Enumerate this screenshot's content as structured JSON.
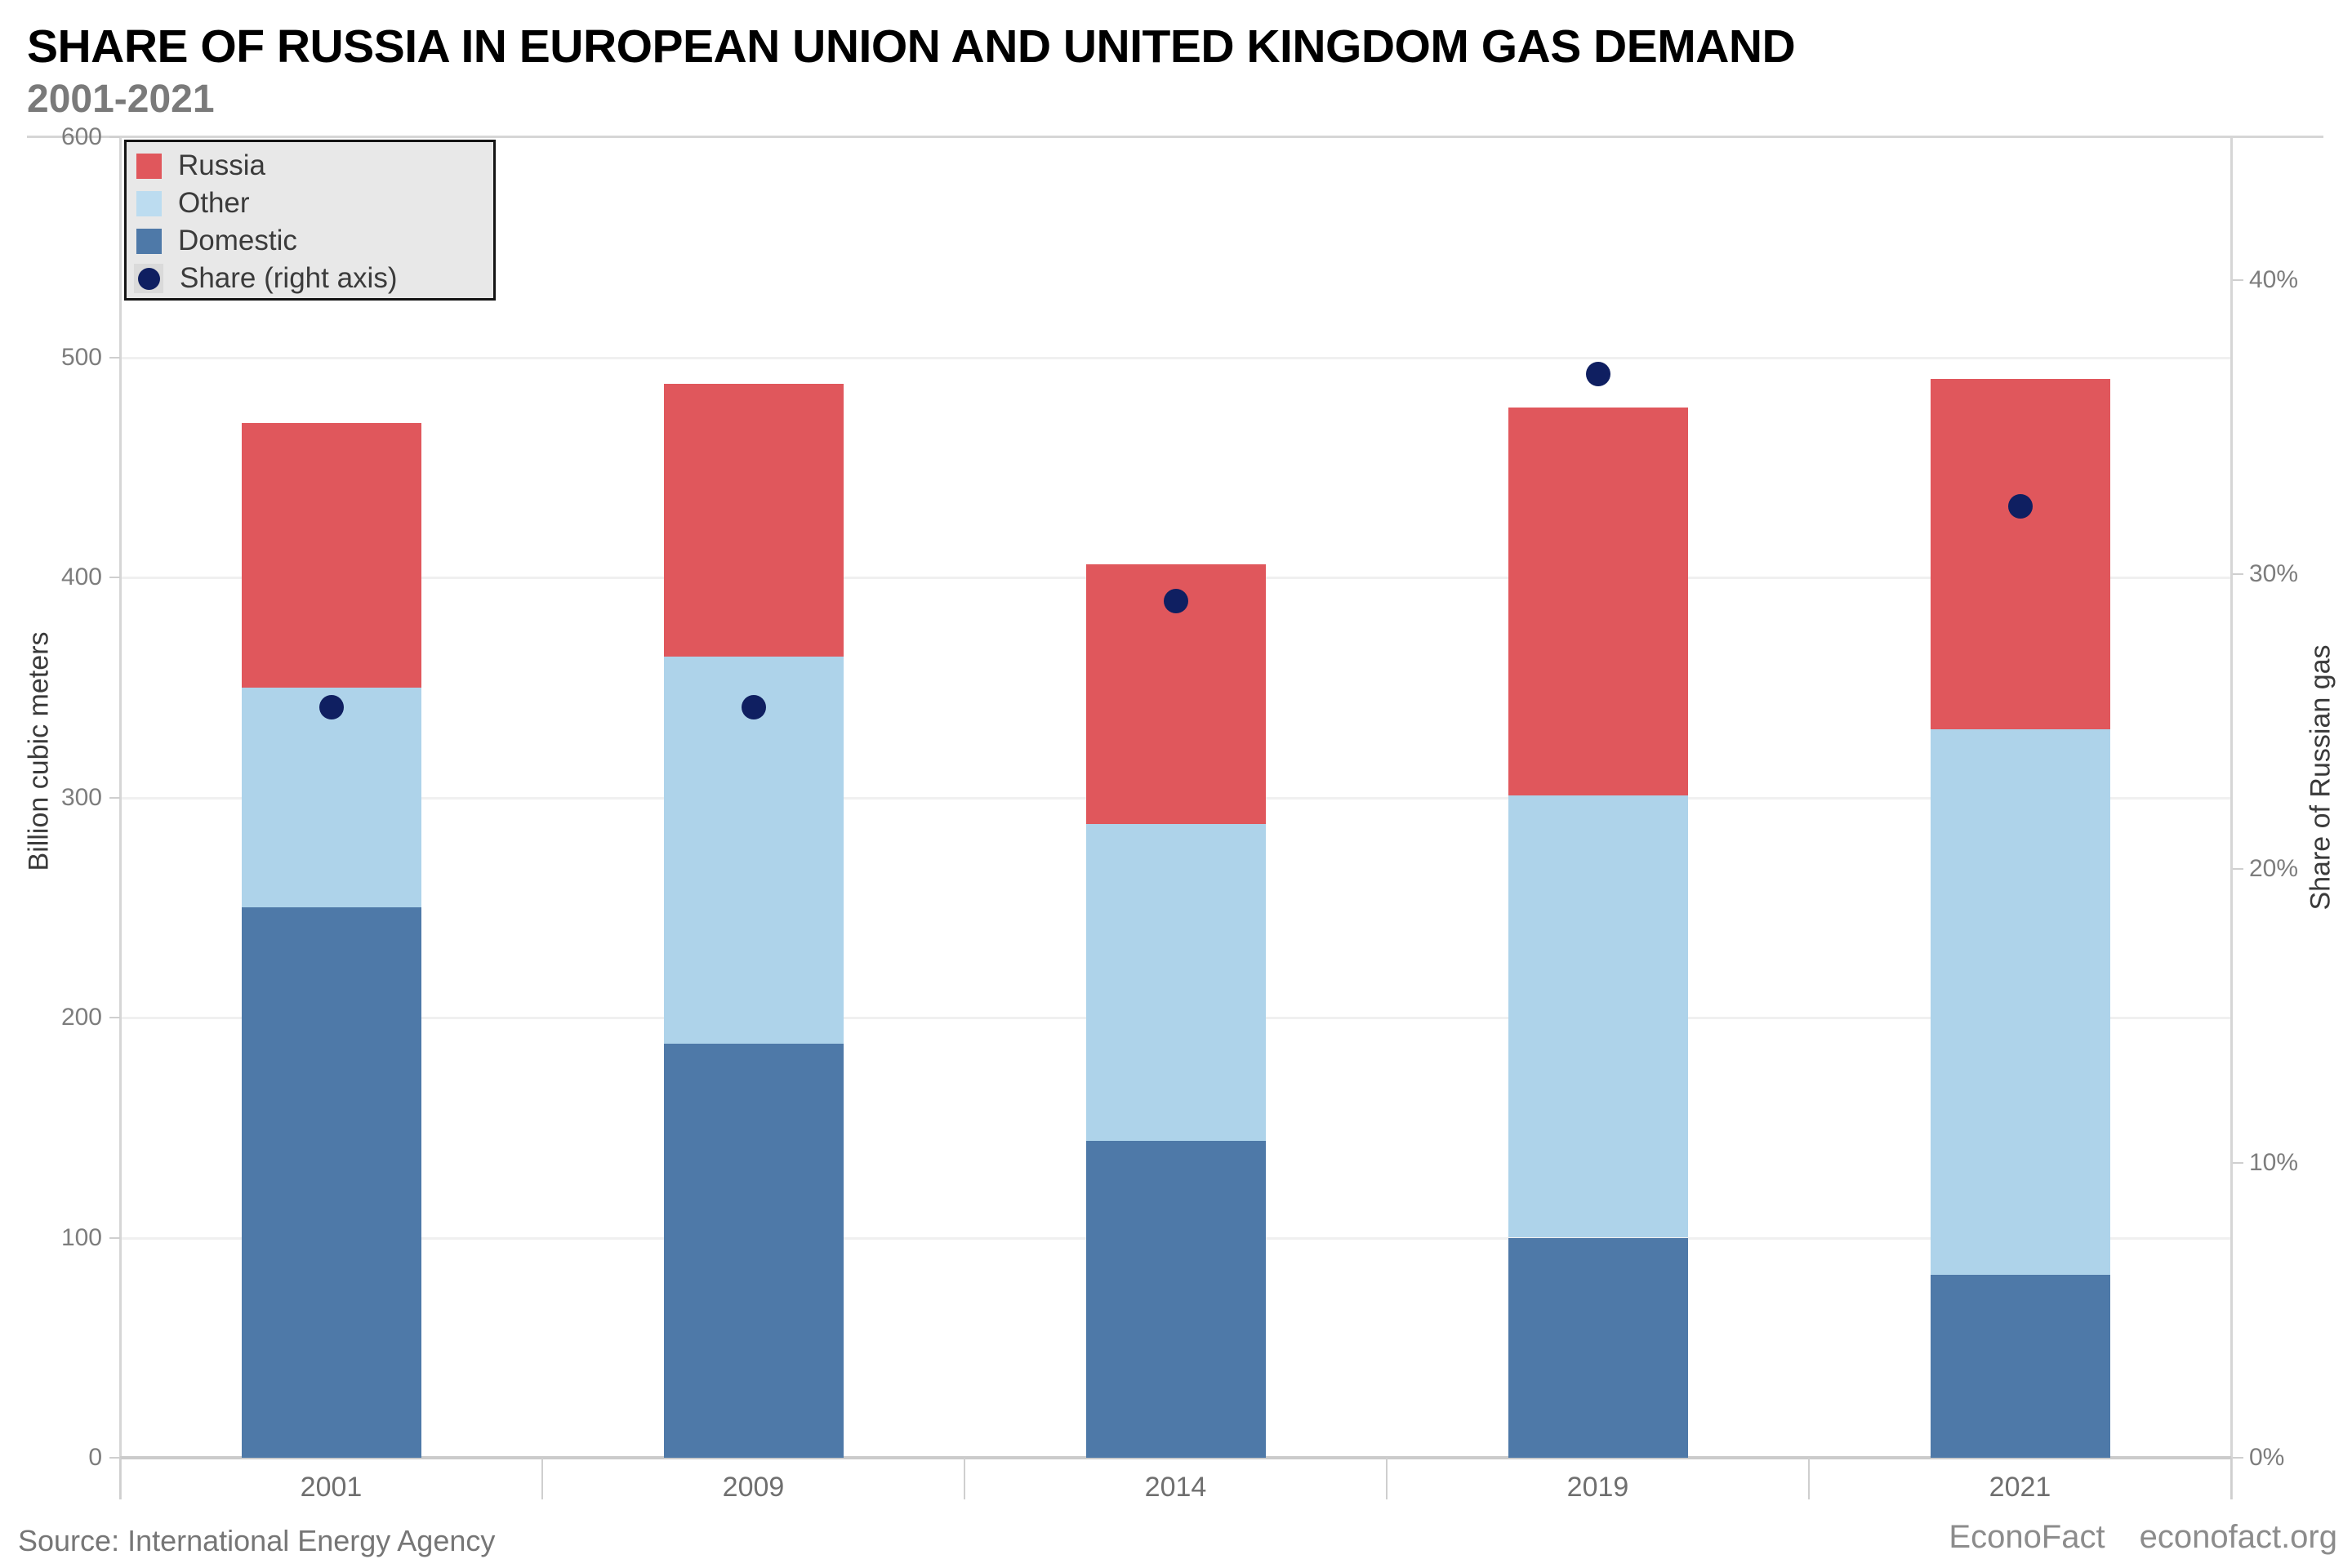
{
  "header": {
    "title": "SHARE OF RUSSIA IN EUROPEAN UNION AND UNITED KINGDOM GAS DEMAND",
    "subtitle": "2001-2021"
  },
  "legend": {
    "position": "top-left",
    "items": [
      {
        "label": "Russia",
        "marker": "square",
        "color": "#e0575c"
      },
      {
        "label": "Other",
        "marker": "square",
        "color": "#bcdcf0"
      },
      {
        "label": "Domestic",
        "marker": "square",
        "color": "#4e79a8"
      },
      {
        "label": "Share (right axis)",
        "marker": "dot",
        "color": "#0f1f61"
      }
    ]
  },
  "chart_data": {
    "type": "combo",
    "bar_type": "stacked",
    "categories": [
      "2001",
      "2009",
      "2014",
      "2019",
      "2021"
    ],
    "series": [
      {
        "name": "Domestic",
        "color": "#4e79a8",
        "values": [
          250,
          188,
          144,
          100,
          83
        ]
      },
      {
        "name": "Other",
        "color": "#aed3ea",
        "values": [
          100,
          176,
          144,
          201,
          248
        ]
      },
      {
        "name": "Russia",
        "color": "#e0575c",
        "values": [
          120,
          124,
          118,
          176,
          159
        ]
      }
    ],
    "totals": [
      470,
      488,
      406,
      477,
      490
    ],
    "share_series": {
      "name": "Share (right axis)",
      "color": "#0f1f61",
      "values_pct": [
        25.5,
        25.5,
        29.1,
        36.8,
        32.3
      ]
    },
    "left_axis": {
      "label": "Billion cubic meters",
      "ticks": [
        0,
        100,
        200,
        300,
        400,
        500,
        600
      ],
      "range": [
        0,
        600
      ]
    },
    "right_axis": {
      "label": "Share of Russian gas",
      "ticks": [
        "0%",
        "10%",
        "20%",
        "30%",
        "40%"
      ],
      "tick_values": [
        0,
        10,
        20,
        30,
        40
      ],
      "range_top_pct": 44.85
    },
    "grid": true,
    "legend_position": "top-left"
  },
  "footer": {
    "source": "Source: International Energy Agency",
    "brand": "EconoFact",
    "site": "econofact.org"
  },
  "colors": {
    "gridline": "#f0f0f0",
    "frame": "#d6d6d6",
    "axis_line": "#cbcbcb",
    "tick_mark": "#cfcfcf"
  }
}
